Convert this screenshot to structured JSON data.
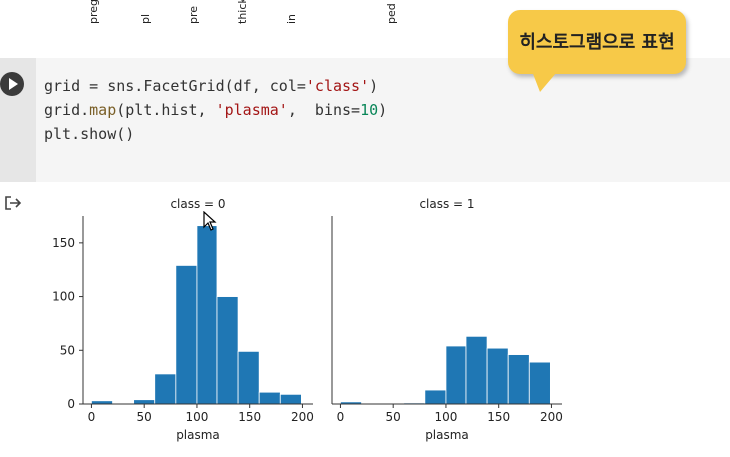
{
  "top_labels": [
    "preg",
    "pl",
    "pre",
    "thick",
    "in",
    "ped"
  ],
  "code": {
    "line1": {
      "a": "grid = sns.FacetGrid(df, col=",
      "s": "'class'",
      "b": ")"
    },
    "line2": {
      "a": "grid.",
      "f": "map",
      "b": "(plt.hist, ",
      "s": "'plasma'",
      "c": ",  bins=",
      "n": "10",
      "d": ")"
    }
  },
  "code_line3": "plt.show()",
  "callout": "히스토그램으로 표현",
  "chart_data": [
    {
      "type": "bar",
      "title": "class = 0",
      "xlabel": "plasma",
      "ylabel": "",
      "bins": [
        [
          0,
          20,
          3
        ],
        [
          20,
          40,
          0
        ],
        [
          40,
          60,
          4
        ],
        [
          60,
          80,
          28
        ],
        [
          80,
          100,
          129
        ],
        [
          100,
          119,
          166
        ],
        [
          119,
          139,
          100
        ],
        [
          139,
          159,
          49
        ],
        [
          159,
          179,
          11
        ],
        [
          179,
          199,
          9
        ]
      ],
      "xlim": [
        -8,
        210
      ],
      "ylim": [
        0,
        175
      ],
      "xticks": [
        0,
        50,
        100,
        150,
        200
      ],
      "yticks": [
        0,
        50,
        100,
        150
      ],
      "color": "#1f77b4"
    },
    {
      "type": "bar",
      "title": "class = 1",
      "xlabel": "plasma",
      "ylabel": "",
      "bins": [
        [
          0,
          20,
          2
        ],
        [
          20,
          40,
          0
        ],
        [
          40,
          60,
          0
        ],
        [
          60,
          80,
          1
        ],
        [
          80,
          100,
          13
        ],
        [
          100,
          119,
          54
        ],
        [
          119,
          139,
          63
        ],
        [
          139,
          159,
          52
        ],
        [
          159,
          179,
          46
        ],
        [
          179,
          199,
          39
        ]
      ],
      "xlim": [
        -8,
        210
      ],
      "ylim": [
        0,
        175
      ],
      "xticks": [
        0,
        50,
        100,
        150,
        200
      ],
      "yticks": [],
      "color": "#1f77b4"
    }
  ]
}
